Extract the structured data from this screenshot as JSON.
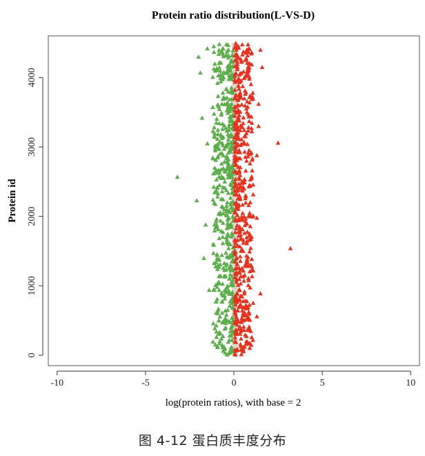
{
  "chart_data": {
    "type": "scatter",
    "title": "Protein ratio distribution(L-VS-D)",
    "xlabel": "log(protein ratios), with base = 2",
    "ylabel": "Protein id",
    "xlim": [
      -10.5,
      10.5
    ],
    "ylim": [
      -150,
      4600
    ],
    "xticks": [
      -10,
      -5,
      0,
      5,
      10
    ],
    "xtick_labels": [
      "-10",
      "-5",
      "0",
      "5",
      "10"
    ],
    "yticks": [
      0,
      1000,
      2000,
      3000,
      4000
    ],
    "ytick_labels": [
      "0",
      "1000",
      "2000",
      "3000",
      "4000"
    ],
    "grid": false,
    "legend": "none",
    "marker": "triangle",
    "y_range": [
      0,
      4500
    ],
    "series": [
      {
        "color": "#5cae4a",
        "bulk_x_range": [
          -1.2,
          -0.05
        ],
        "outliers": [
          {
            "x": -3.2,
            "y": 2570
          },
          {
            "x": -2.1,
            "y": 2230
          },
          {
            "x": -2.0,
            "y": 4300
          },
          {
            "x": -1.9,
            "y": 4070
          },
          {
            "x": -1.8,
            "y": 3420
          },
          {
            "x": -1.7,
            "y": 1400
          },
          {
            "x": -1.6,
            "y": 1880
          },
          {
            "x": -1.5,
            "y": 3050
          },
          {
            "x": -1.5,
            "y": 4420
          },
          {
            "x": -1.4,
            "y": 940
          }
        ]
      },
      {
        "color": "#e5321e",
        "bulk_x_range": [
          0.05,
          1.1
        ],
        "outliers": [
          {
            "x": 3.2,
            "y": 1540
          },
          {
            "x": 2.5,
            "y": 3060
          },
          {
            "x": 1.6,
            "y": 4150
          },
          {
            "x": 1.4,
            "y": 3620
          },
          {
            "x": 1.5,
            "y": 4400
          },
          {
            "x": 1.3,
            "y": 2880
          },
          {
            "x": 1.5,
            "y": 890
          },
          {
            "x": 1.3,
            "y": 1980
          },
          {
            "x": 1.3,
            "y": 560
          },
          {
            "x": 1.4,
            "y": 3300
          }
        ]
      }
    ]
  },
  "caption": "图 4-12 蛋白质丰度分布"
}
